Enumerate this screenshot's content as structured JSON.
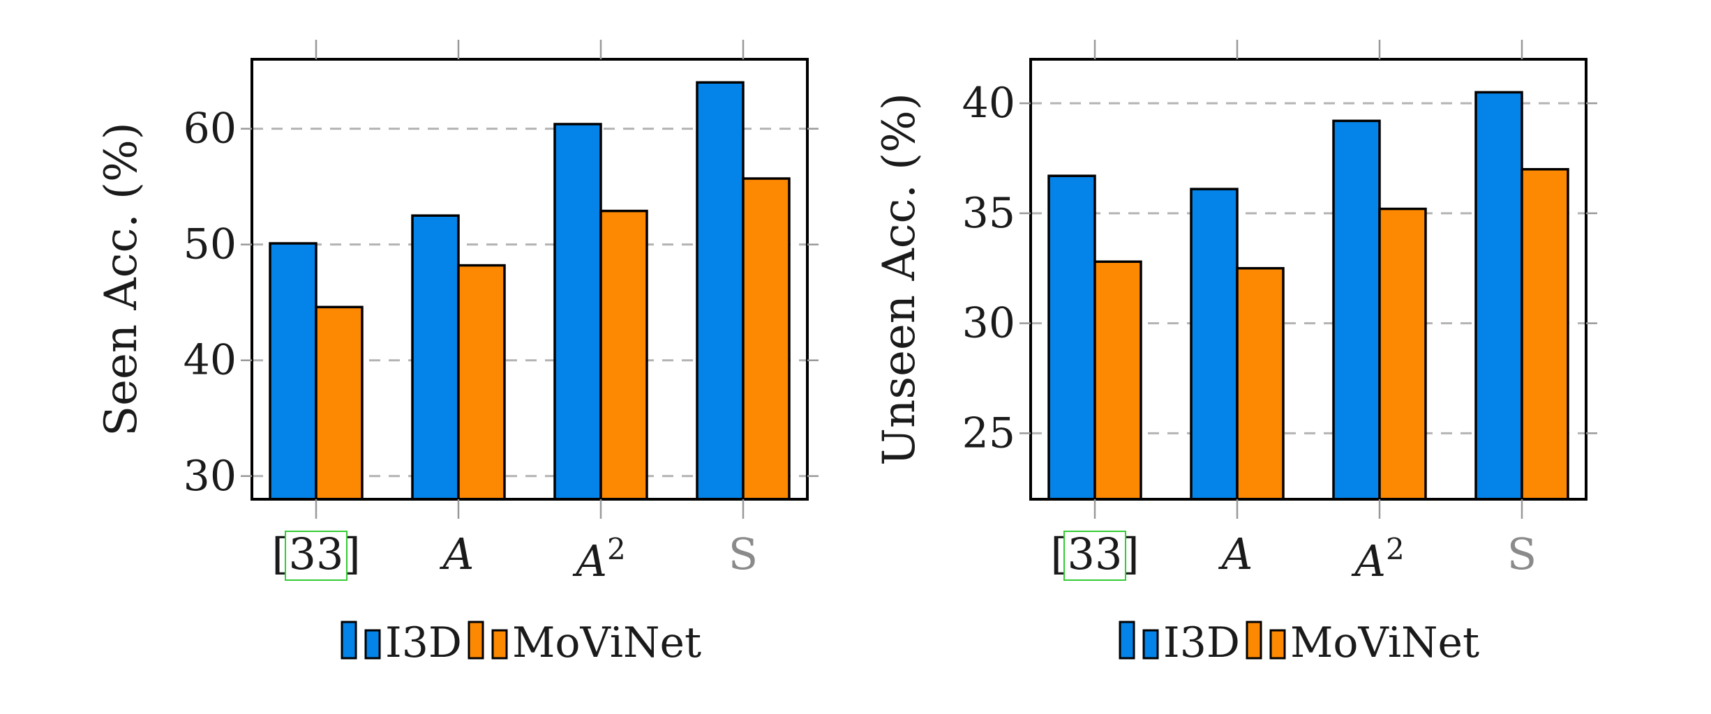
{
  "colors": {
    "I3D": "#0483e8",
    "MoViNet": "#fd8801",
    "grid": "#b3b3b3",
    "axis": "#000000",
    "citation_box": "#33cc33",
    "s_label": "#8a8a8a"
  },
  "legend": [
    {
      "label": "I3D",
      "color": "#0483e8"
    },
    {
      "label": "MoViNet",
      "color": "#fd8801"
    }
  ],
  "chart_data": [
    {
      "type": "bar",
      "ylabel": "Seen Acc. (%)",
      "categories": [
        "[33]",
        "A",
        "A2",
        "S"
      ],
      "category_display": [
        {
          "text": "[33]"
        },
        {
          "text": "A"
        },
        {
          "text": "A",
          "sup": "2"
        },
        {
          "text": "S"
        }
      ],
      "series": [
        {
          "name": "I3D",
          "values": [
            50.1,
            52.5,
            60.4,
            64.0
          ]
        },
        {
          "name": "MoViNet",
          "values": [
            44.6,
            48.2,
            52.9,
            55.7
          ]
        }
      ],
      "ylim": [
        28,
        66
      ],
      "yticks": [
        30,
        40,
        50,
        60
      ],
      "grid": "horizontal dashed",
      "legend_position": "bottom"
    },
    {
      "type": "bar",
      "ylabel": "Unseen Acc. (%)",
      "categories": [
        "[33]",
        "A",
        "A2",
        "S"
      ],
      "category_display": [
        {
          "text": "[33]"
        },
        {
          "text": "A"
        },
        {
          "text": "A",
          "sup": "2"
        },
        {
          "text": "S"
        }
      ],
      "series": [
        {
          "name": "I3D",
          "values": [
            36.7,
            36.1,
            39.2,
            40.5
          ]
        },
        {
          "name": "MoViNet",
          "values": [
            32.8,
            32.5,
            35.2,
            37.0
          ]
        }
      ],
      "ylim": [
        22,
        42
      ],
      "yticks": [
        25,
        30,
        35,
        40
      ],
      "grid": "horizontal dashed",
      "legend_position": "bottom"
    }
  ]
}
